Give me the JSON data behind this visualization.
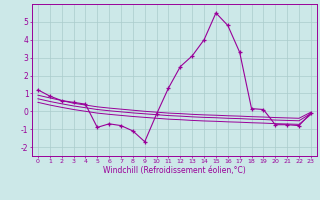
{
  "x": [
    0,
    1,
    2,
    3,
    4,
    5,
    6,
    7,
    8,
    9,
    10,
    11,
    12,
    13,
    14,
    15,
    16,
    17,
    18,
    19,
    20,
    21,
    22,
    23
  ],
  "y_main": [
    1.2,
    0.85,
    0.6,
    0.5,
    0.4,
    -0.9,
    -0.7,
    -0.8,
    -1.1,
    -1.7,
    -0.15,
    1.3,
    2.5,
    3.1,
    4.0,
    5.5,
    4.8,
    3.3,
    0.15,
    0.1,
    -0.75,
    -0.75,
    -0.8,
    -0.1
  ],
  "y_trend1": [
    0.9,
    0.75,
    0.6,
    0.45,
    0.35,
    0.25,
    0.18,
    0.12,
    0.06,
    0.0,
    -0.05,
    -0.1,
    -0.13,
    -0.17,
    -0.2,
    -0.22,
    -0.25,
    -0.27,
    -0.3,
    -0.32,
    -0.35,
    -0.37,
    -0.39,
    -0.05
  ],
  "y_trend2": [
    0.7,
    0.55,
    0.42,
    0.3,
    0.2,
    0.1,
    0.03,
    -0.03,
    -0.09,
    -0.14,
    -0.19,
    -0.24,
    -0.27,
    -0.31,
    -0.34,
    -0.36,
    -0.39,
    -0.41,
    -0.44,
    -0.46,
    -0.49,
    -0.51,
    -0.53,
    -0.12
  ],
  "y_trend3": [
    0.5,
    0.35,
    0.22,
    0.1,
    0.0,
    -0.1,
    -0.17,
    -0.23,
    -0.29,
    -0.34,
    -0.39,
    -0.44,
    -0.47,
    -0.51,
    -0.54,
    -0.56,
    -0.59,
    -0.61,
    -0.64,
    -0.66,
    -0.69,
    -0.71,
    -0.73,
    -0.18
  ],
  "line_color": "#990099",
  "bg_color": "#cce8e8",
  "grid_color": "#aacccc",
  "xlim": [
    -0.5,
    23.5
  ],
  "ylim": [
    -2.5,
    6.0
  ],
  "yticks": [
    -2,
    -1,
    0,
    1,
    2,
    3,
    4,
    5
  ],
  "xticks": [
    0,
    1,
    2,
    3,
    4,
    5,
    6,
    7,
    8,
    9,
    10,
    11,
    12,
    13,
    14,
    15,
    16,
    17,
    18,
    19,
    20,
    21,
    22,
    23
  ],
  "xlabel": "Windchill (Refroidissement éolien,°C)"
}
